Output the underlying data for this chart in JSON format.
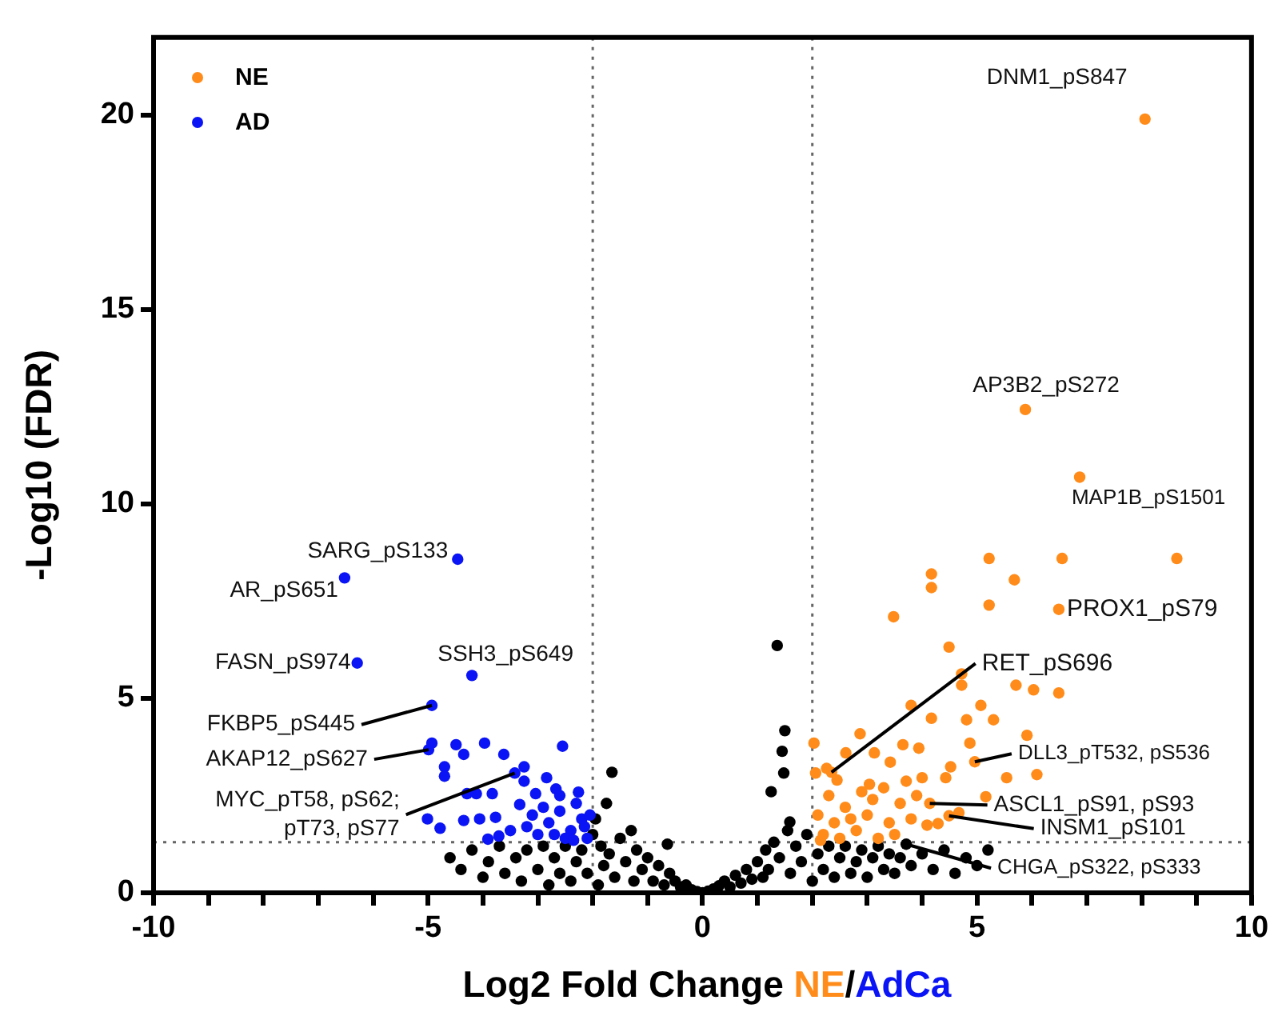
{
  "chart_data": {
    "type": "scatter",
    "xlabel": "Log2 Fold Change NE/AdCa",
    "ylabel": "-Log10 (FDR)",
    "xlim": [
      -10,
      10
    ],
    "ylim": [
      0,
      22
    ],
    "xticks": [
      -10,
      {
        "value": -9,
        "label": null
      },
      {
        "value": -8,
        "label": null
      },
      {
        "value": -7,
        "label": null
      },
      {
        "value": -6,
        "label": null
      },
      -5,
      {
        "value": -4,
        "label": null
      },
      {
        "value": -3,
        "label": null
      },
      {
        "value": -2,
        "label": null
      },
      {
        "value": -1,
        "label": null
      },
      0,
      {
        "value": 1,
        "label": null
      },
      {
        "value": 2,
        "label": null
      },
      {
        "value": 3,
        "label": null
      },
      {
        "value": 4,
        "label": null
      },
      5,
      {
        "value": 6,
        "label": null
      },
      {
        "value": 7,
        "label": null
      },
      {
        "value": 8,
        "label": null
      },
      {
        "value": 9,
        "label": null
      },
      10
    ],
    "yticks": [
      0,
      5,
      10,
      15,
      20
    ],
    "legend": "top left",
    "marker": "circle",
    "ref_lines": [
      {
        "axis": "x",
        "value": -2,
        "color": "#666666",
        "line_style": "dotted"
      },
      {
        "axis": "x",
        "value": 2,
        "color": "#666666",
        "line_style": "dotted"
      },
      {
        "axis": "y",
        "value": 1.3,
        "color": "#666666",
        "line_style": "dotted"
      }
    ],
    "series": [
      {
        "name": "NE",
        "color": "#ff8c1a",
        "x": [
          8.06,
          5.88,
          6.87,
          6.49,
          5.22,
          6.55,
          8.64,
          4.17,
          4.17,
          5.68,
          5.22,
          3.48,
          2.35,
          4.96,
          4.14,
          4.49,
          4.49,
          4.72,
          4.72,
          5.71,
          6.03,
          6.49,
          5.07,
          3.8,
          4.17,
          4.81,
          5.3,
          2.87,
          5.91,
          4.87,
          2.03,
          3.65,
          3.94,
          3.13,
          2.61,
          4.52,
          5.54,
          6.09,
          5.16,
          4.0,
          3.42,
          3.04,
          3.71,
          4.43,
          2.26,
          2.06,
          4.09,
          4.29,
          4.67,
          2.2,
          2.4,
          2.6,
          2.8,
          3.0,
          3.2,
          3.4,
          3.6,
          2.3,
          2.5,
          2.9,
          3.1,
          3.5,
          3.8,
          2.1,
          2.7,
          3.3,
          2.45,
          3.9,
          2.15
        ],
        "values": [
          19.9,
          12.43,
          10.69,
          7.29,
          8.6,
          8.6,
          8.6,
          8.2,
          7.85,
          8.05,
          7.4,
          7.1,
          3.1,
          3.37,
          2.3,
          1.98,
          6.32,
          5.63,
          5.34,
          5.34,
          5.22,
          5.14,
          4.82,
          4.82,
          4.49,
          4.45,
          4.45,
          4.09,
          4.05,
          3.85,
          3.85,
          3.81,
          3.72,
          3.6,
          3.6,
          3.24,
          2.96,
          3.04,
          2.47,
          2.96,
          3.36,
          2.79,
          2.87,
          2.96,
          3.2,
          3.08,
          1.74,
          1.78,
          2.06,
          1.5,
          1.8,
          2.2,
          1.6,
          2.0,
          1.4,
          1.8,
          2.3,
          2.5,
          1.4,
          2.6,
          2.4,
          1.5,
          1.9,
          2.0,
          1.9,
          2.7,
          2.9,
          2.5,
          1.35
        ]
      },
      {
        "name": "AD",
        "color": "#0a14f5",
        "x": [
          -4.46,
          -6.52,
          -6.29,
          -4.2,
          -4.93,
          -4.99,
          -3.42,
          -4.93,
          -4.49,
          -3.97,
          -2.55,
          -4.35,
          -3.62,
          -4.7,
          -4.7,
          -3.25,
          -4.29,
          -4.12,
          -3.83,
          -3.25,
          -2.84,
          -5.01,
          -4.78,
          -4.35,
          -4.06,
          -3.77,
          -3.91,
          -3.71,
          -3.33,
          -3.04,
          -2.67,
          -2.26,
          -3.0,
          -2.8,
          -2.6,
          -2.4,
          -2.2,
          -2.1,
          -2.5,
          -2.9,
          -3.2,
          -2.3,
          -2.7,
          -2.15,
          -2.05,
          -2.35,
          -3.5,
          -3.1,
          -2.6
        ],
        "values": [
          8.58,
          8.1,
          5.91,
          5.59,
          4.82,
          3.68,
          3.08,
          3.85,
          3.81,
          3.85,
          3.77,
          3.56,
          3.56,
          3.24,
          3.0,
          3.24,
          2.55,
          2.55,
          2.55,
          2.87,
          2.96,
          1.9,
          1.66,
          1.86,
          1.9,
          1.94,
          1.38,
          1.46,
          2.27,
          2.55,
          2.67,
          2.59,
          1.5,
          1.8,
          2.1,
          1.6,
          1.9,
          1.4,
          1.4,
          2.2,
          1.7,
          2.3,
          1.5,
          1.7,
          2.0,
          1.35,
          1.6,
          2.0,
          2.5
        ]
      },
      {
        "color": "#000000",
        "x": [
          -4.6,
          -4.4,
          -4.2,
          -4.0,
          -3.9,
          -3.7,
          -3.6,
          -3.4,
          -3.3,
          -3.2,
          -3.0,
          -2.9,
          -2.8,
          -2.7,
          -2.6,
          -2.5,
          -2.4,
          -2.3,
          -2.2,
          -2.1,
          -2.0,
          -1.95,
          -1.9,
          -1.85,
          -1.8,
          -1.75,
          -1.7,
          -1.65,
          -1.6,
          -1.5,
          -1.4,
          -1.3,
          -1.25,
          -1.2,
          -1.1,
          -1.0,
          -0.9,
          -0.8,
          -0.7,
          -0.64,
          -0.6,
          -0.5,
          -0.4,
          -0.3,
          -0.2,
          -0.1,
          0,
          0.1,
          0.2,
          0.3,
          0.4,
          0.5,
          0.6,
          0.7,
          0.8,
          0.9,
          1.0,
          1.1,
          1.15,
          1.2,
          1.25,
          1.3,
          1.36,
          1.4,
          1.45,
          1.48,
          1.5,
          1.55,
          1.59,
          1.6,
          1.7,
          1.8,
          1.9,
          2.0,
          2.1,
          2.2,
          2.3,
          2.4,
          2.5,
          2.6,
          2.7,
          2.8,
          2.9,
          3.0,
          3.1,
          3.2,
          3.3,
          3.4,
          3.5,
          3.6,
          3.71,
          3.8,
          4.0,
          4.2,
          4.4,
          4.6,
          4.8,
          5.0,
          5.2
        ],
        "values": [
          0.9,
          0.6,
          1.1,
          0.4,
          0.8,
          1.2,
          0.5,
          0.9,
          0.3,
          1.1,
          0.6,
          1.2,
          0.2,
          0.9,
          0.5,
          1.2,
          0.3,
          0.8,
          1.1,
          0.5,
          1.5,
          1.9,
          0.2,
          1.2,
          0.7,
          2.3,
          1.0,
          3.1,
          0.4,
          1.4,
          0.8,
          1.6,
          0.3,
          1.1,
          0.6,
          0.9,
          0.3,
          0.7,
          0.2,
          1.25,
          0.5,
          0.3,
          0.15,
          0.2,
          0.08,
          0.03,
          0.0,
          0.04,
          0.1,
          0.18,
          0.3,
          0.15,
          0.45,
          0.25,
          0.6,
          0.35,
          0.8,
          0.4,
          1.1,
          0.6,
          2.6,
          1.3,
          6.36,
          0.9,
          3.64,
          3.08,
          4.17,
          1.6,
          1.82,
          0.5,
          1.2,
          0.8,
          1.5,
          0.3,
          1.0,
          0.6,
          1.2,
          0.4,
          0.9,
          1.2,
          0.5,
          0.8,
          1.1,
          0.4,
          0.9,
          1.2,
          0.6,
          1.0,
          0.5,
          0.9,
          1.25,
          0.7,
          1.0,
          0.6,
          1.1,
          0.5,
          0.9,
          0.7,
          1.1
        ]
      }
    ],
    "annotations": [
      {
        "text": "DNM1_pS847",
        "x": 8.06,
        "y": 19.9
      },
      {
        "text": "AP3B2_pS272",
        "x": 5.88,
        "y": 12.43
      },
      {
        "text": "MAP1B_pS1501",
        "x": 6.87,
        "y": 10.69
      },
      {
        "text": "PROX1_pS79",
        "x": 6.49,
        "y": 7.29
      },
      {
        "text": "RET_pS696",
        "x": 2.35,
        "y": 3.1
      },
      {
        "text": "DLL3_pT532, pS536",
        "x": 4.96,
        "y": 3.37
      },
      {
        "text": "ASCL1_pS91, pS93",
        "x": 4.14,
        "y": 2.3
      },
      {
        "text": "INSM1_pS101",
        "x": 4.49,
        "y": 1.98
      },
      {
        "text": "CHGA_pS322, pS333",
        "x": 3.71,
        "y": 1.25
      },
      {
        "text": "SARG_pS133",
        "x": -4.46,
        "y": 8.58
      },
      {
        "text": "AR_pS651",
        "x": -6.52,
        "y": 8.1
      },
      {
        "text": "FASN_pS974",
        "x": -6.29,
        "y": 5.91
      },
      {
        "text": "SSH3_pS649",
        "x": -4.2,
        "y": 5.59
      },
      {
        "text": "FKBP5_pS445",
        "x": -4.93,
        "y": 4.82
      },
      {
        "text": "AKAP12_pS627",
        "x": -4.99,
        "y": 3.68
      },
      {
        "text": "MYC_pT58, pS62;\npT73, pS77",
        "x": -3.42,
        "y": 3.08
      }
    ]
  }
}
